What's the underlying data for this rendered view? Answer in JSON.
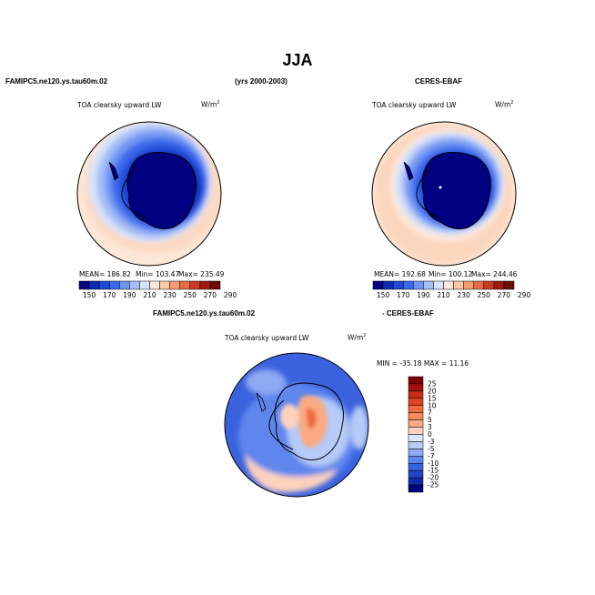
{
  "page": {
    "season": "JJA",
    "model_case": "FAMIPC5.ne120.ys.tau60m.02",
    "years": "(yrs 2000-2003)",
    "obs": "CERES-EBAF",
    "diff_obs": "- CERES-EBAF"
  },
  "panels": {
    "model": {
      "variable": "TOA clearsky upward LW",
      "units": "W/m",
      "units_sup": "2",
      "mean": "MEAN= 186.82",
      "min": "Min= 103.47",
      "max": "Max= 235.49"
    },
    "obs": {
      "variable": "TOA clearsky upward LW",
      "units": "W/m",
      "units_sup": "2",
      "mean": "MEAN= 192.68",
      "min": "Min= 100.12",
      "max": "Max= 244.46"
    },
    "diff": {
      "variable": "TOA clearsky upward LW",
      "units": "W/m",
      "units_sup": "2",
      "minmax": "MIN = -35.18 MAX = 11.16"
    }
  },
  "colorbar_abs": {
    "labels": [
      "150",
      "170",
      "190",
      "210",
      "230",
      "250",
      "270",
      "290"
    ],
    "colors": [
      "#000080",
      "#0c2ab4",
      "#1f48d6",
      "#3a68ec",
      "#6f95f3",
      "#a6bdf6",
      "#d7e3fb",
      "#fde7d7",
      "#fcc7a5",
      "#f69a6f",
      "#e66a45",
      "#c93a22",
      "#9c1a0c",
      "#6b0c06"
    ]
  },
  "colorbar_diff": {
    "labels": [
      "25",
      "20",
      "15",
      "10",
      "7",
      "5",
      "3",
      "0",
      "-3",
      "-5",
      "-7",
      "-10",
      "-15",
      "-20",
      "-25"
    ],
    "colors": [
      "#7f0000",
      "#a40f0a",
      "#c62a16",
      "#e14425",
      "#f0693f",
      "#f78a5c",
      "#fbaa82",
      "#fdd2bd",
      "#dde7fb",
      "#b6cbf7",
      "#8daaf2",
      "#5f86ec",
      "#3b62de",
      "#2443c6",
      "#0f2aa8",
      "#000080"
    ]
  }
}
